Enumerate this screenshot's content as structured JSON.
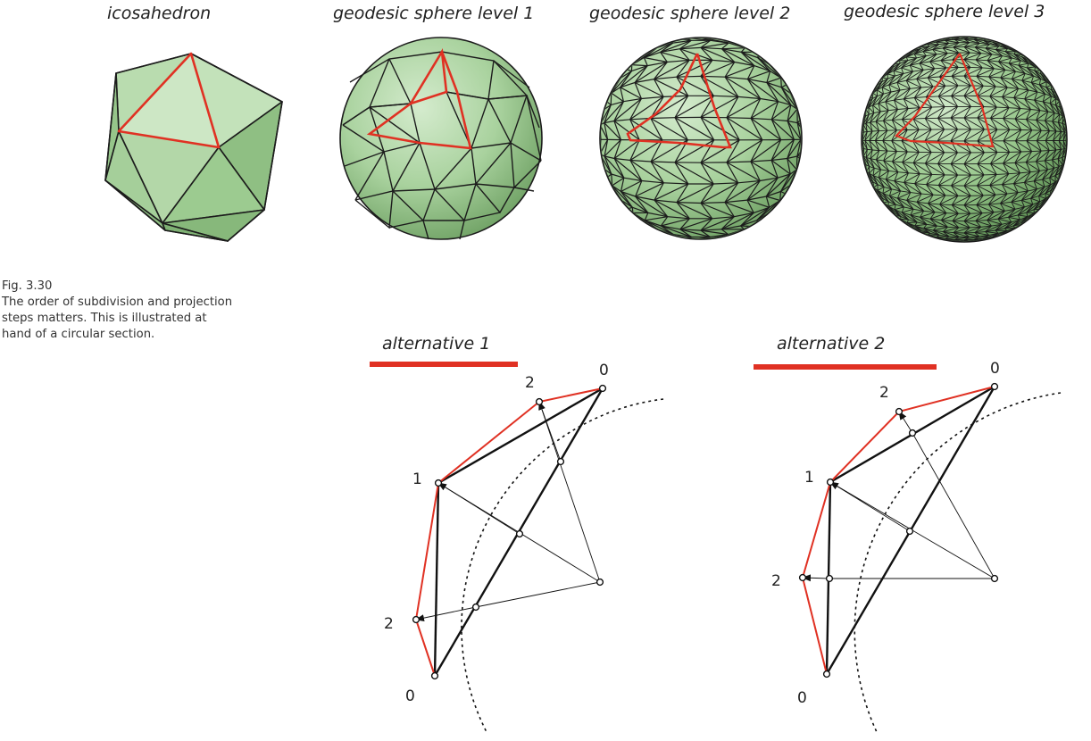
{
  "titles": {
    "icosahedron": "icosahedron",
    "level1": "geodesic sphere level 1",
    "level2": "geodesic sphere level 2",
    "level3": "geodesic sphere level 3"
  },
  "caption": {
    "fig_no": "Fig. 3.30",
    "line1": "The order of subdivision and projection",
    "line2": "steps matters. This is illustrated at",
    "line3": "hand of a circular section."
  },
  "alternatives": {
    "alt1": {
      "title": "alternative 1",
      "labels": [
        "0",
        "2",
        "1",
        "2",
        "0"
      ]
    },
    "alt2": {
      "title": "alternative 2",
      "labels": [
        "0",
        "2",
        "1",
        "2",
        "0"
      ]
    }
  },
  "colors": {
    "highlight": "#e03123",
    "mesh_fill": "#a9d29e",
    "mesh_dark": "#7fb174",
    "edge": "#1c1c1c"
  }
}
